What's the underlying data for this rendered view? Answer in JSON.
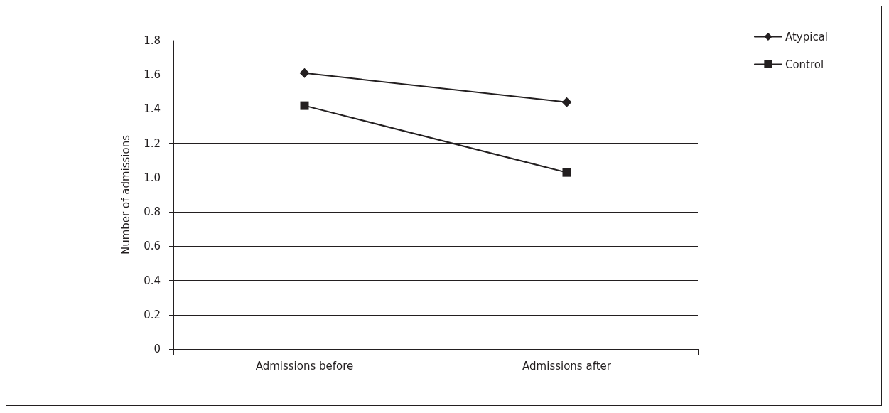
{
  "chart_data": {
    "type": "line",
    "ylabel": "Number of admissions",
    "categories": [
      "Admissions before",
      "Admissions after"
    ],
    "series": [
      {
        "name": "Atypical",
        "color": "#231f20",
        "marker": "diamond",
        "values": [
          1.61,
          1.44
        ]
      },
      {
        "name": "Control",
        "color": "#231f20",
        "marker": "square",
        "values": [
          1.42,
          1.03
        ]
      }
    ],
    "ylim": [
      0,
      1.8
    ],
    "yticks": [
      0,
      {
        "value": 0.2,
        "label": "0.2"
      },
      {
        "value": 0.4,
        "label": "0.4"
      },
      {
        "value": 0.6,
        "label": "0.6"
      },
      {
        "value": 0.8,
        "label": "0.8"
      },
      {
        "value": 1.0,
        "label": "1.0"
      },
      {
        "value": 1.2,
        "label": "1.2"
      },
      {
        "value": 1.4,
        "label": "1.4"
      },
      {
        "value": 1.6,
        "label": "1.6"
      },
      {
        "value": 1.8,
        "label": "1.8"
      }
    ],
    "grid": "y",
    "legend": "top right",
    "line_style": "solid"
  }
}
